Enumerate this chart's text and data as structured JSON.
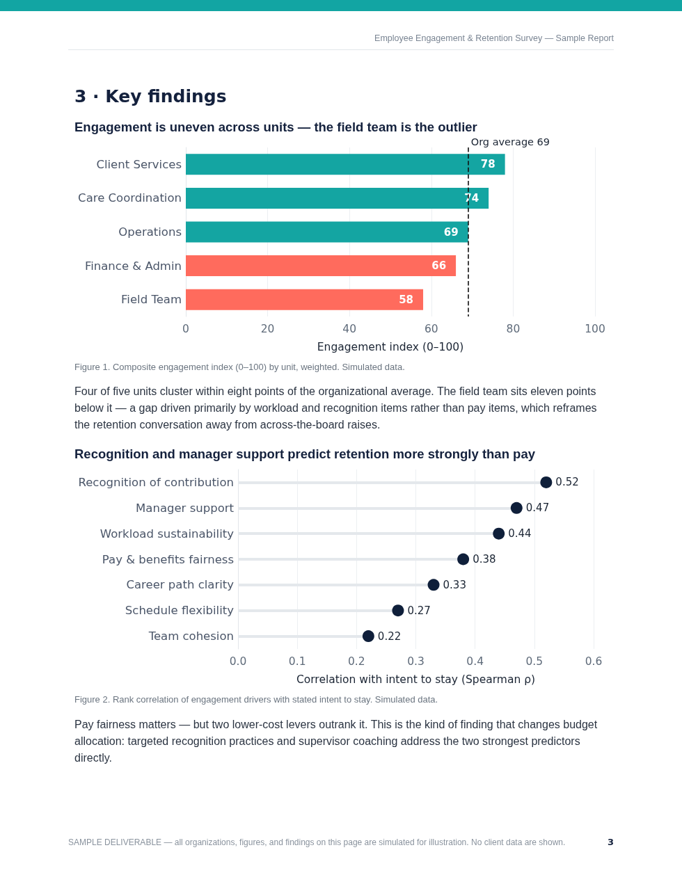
{
  "chart_data": [
    {
      "type": "bar",
      "orientation": "horizontal",
      "title": "Engagement is uneven across units — the field team is the outlier",
      "categories": [
        "Client Services",
        "Care Coordination",
        "Operations",
        "Finance & Admin",
        "Field Team"
      ],
      "values": [
        78,
        74,
        69,
        66,
        58
      ],
      "colors": [
        "#14a5a2",
        "#14a5a2",
        "#14a5a2",
        "#ff6b5d",
        "#ff6b5d"
      ],
      "xlim": [
        0,
        100
      ],
      "xticks": [
        0,
        20,
        40,
        60,
        80,
        100
      ],
      "xlabel": "Engagement index (0–100)",
      "ref_lines": [
        {
          "axis": "x",
          "value": 69,
          "label": "Org average 69",
          "color": "#111111",
          "line_style": "dashed"
        }
      ],
      "data_labels": true,
      "grid": "x",
      "annotations": [
        "Employee Engagement & Retention Survey — Sample Report",
        "3 · Key findings",
        "Figure 1. Composite engagement index (0–100) by unit, weighted. Simulated data.",
        "Four of five units cluster within eight points of the organizational average. The field team sits eleven points below it — a gap driven primarily by workload and recognition items rather than pay items, which reframes the retention conversation away from across-the-board raises."
      ]
    },
    {
      "type": "lollipop",
      "orientation": "horizontal",
      "title": "Recognition and manager support predict retention more strongly than pay",
      "categories": [
        "Recognition of contribution",
        "Manager support",
        "Workload sustainability",
        "Pay & benefits fairness",
        "Career path clarity",
        "Schedule flexibility",
        "Team cohesion"
      ],
      "values": [
        0.52,
        0.47,
        0.44,
        0.38,
        0.33,
        0.27,
        0.22
      ],
      "color": "#0f1f3a",
      "marker": "circle",
      "xlim": [
        0,
        0.6
      ],
      "xticks": [
        {
          "value": 0,
          "label": "0.0"
        },
        0.1,
        0.2,
        0.3,
        0.4,
        0.5,
        0.6
      ],
      "xlabel": "Correlation with intent to stay (Spearman ρ)",
      "data_labels": true,
      "grid": "x",
      "annotations": [
        "Figure 2. Rank correlation of engagement drivers with stated intent to stay. Simulated data.",
        "Pay fairness matters — but two lower-cost levers outrank it. This is the kind of finding that changes budget allocation: targeted recognition practices and supervisor coaching address the two strongest predictors directly.",
        "SAMPLE DELIVERABLE — all organizations, figures, and findings on this page are simulated for illustration. No client data are shown.",
        "3"
      ]
    }
  ]
}
